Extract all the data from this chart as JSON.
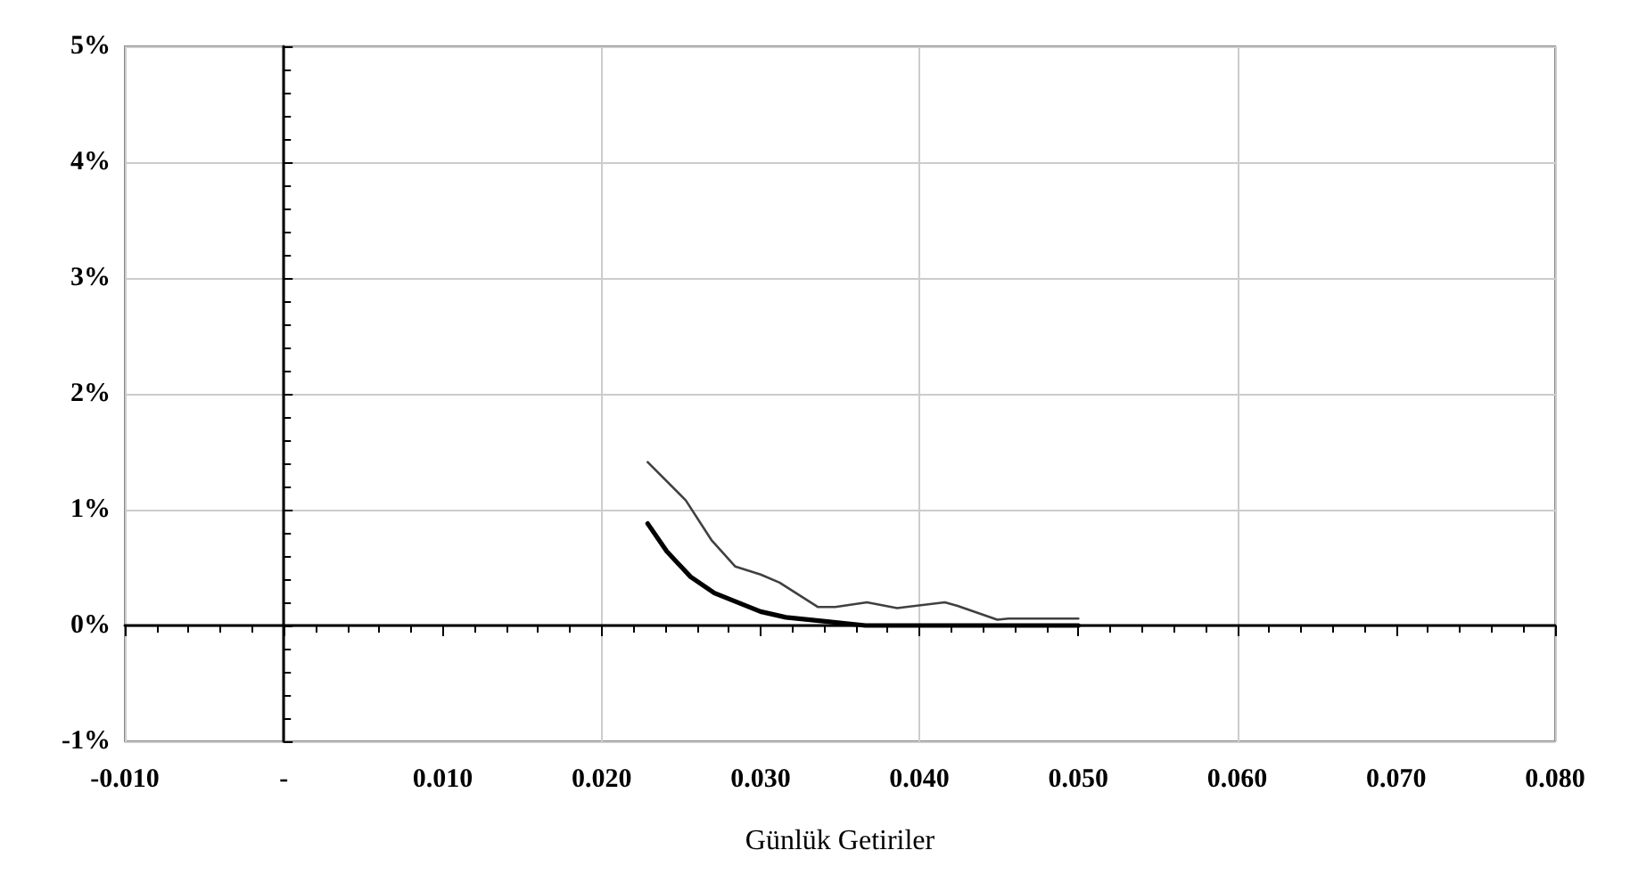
{
  "chart_data": {
    "type": "line",
    "xlabel": "Günlük Getiriler",
    "xlim": [
      -0.01,
      0.08
    ],
    "ylim": [
      -1,
      5
    ],
    "xticks": [
      {
        "value": -0.01,
        "label": "-0.010"
      },
      {
        "value": 0,
        "label": "-"
      },
      {
        "value": 0.01,
        "label": "0.010"
      },
      {
        "value": 0.02,
        "label": "0.020"
      },
      {
        "value": 0.03,
        "label": "0.030"
      },
      {
        "value": 0.04,
        "label": "0.040"
      },
      {
        "value": 0.05,
        "label": "0.050"
      },
      {
        "value": 0.06,
        "label": "0.060"
      },
      {
        "value": 0.07,
        "label": "0.070"
      },
      {
        "value": 0.08,
        "label": "0.080"
      }
    ],
    "yticks": [
      {
        "value": -1,
        "label": "-1%"
      },
      {
        "value": 0,
        "label": "0%"
      },
      {
        "value": 1,
        "label": "1%"
      },
      {
        "value": 2,
        "label": "2%"
      },
      {
        "value": 3,
        "label": "3%"
      },
      {
        "value": 4,
        "label": "4%"
      },
      {
        "value": 5,
        "label": "5%"
      }
    ],
    "grid": true,
    "marker": "none",
    "line_style": "solid",
    "series": [
      {
        "color": "#404040",
        "x": [
          0.0229,
          0.0253,
          0.0269,
          0.0284,
          0.03,
          0.0312,
          0.0336,
          0.0347,
          0.0367,
          0.0386,
          0.0416,
          0.0424,
          0.0449,
          0.0456,
          0.05
        ],
        "values": [
          1.41,
          1.08,
          0.74,
          0.51,
          0.44,
          0.37,
          0.16,
          0.16,
          0.2,
          0.15,
          0.2,
          0.17,
          0.05,
          0.06,
          0.06
        ]
      },
      {
        "color": "#000000",
        "x": [
          0.0229,
          0.0241,
          0.0256,
          0.0271,
          0.03,
          0.0316,
          0.0338,
          0.0366,
          0.04,
          0.045,
          0.05
        ],
        "values": [
          0.88,
          0.64,
          0.42,
          0.28,
          0.12,
          0.07,
          0.04,
          0,
          0,
          0,
          0
        ]
      }
    ]
  }
}
